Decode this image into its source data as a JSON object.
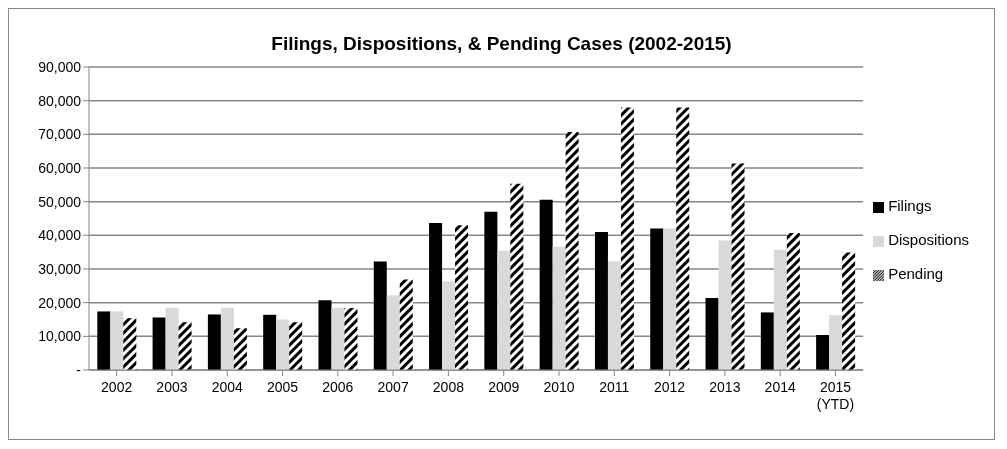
{
  "chart_data": {
    "type": "bar",
    "title": "Filings, Dispositions, & Pending Cases (2002-2015)",
    "categories": [
      "2002",
      "2003",
      "2004",
      "2005",
      "2006",
      "2007",
      "2008",
      "2009",
      "2010",
      "2011",
      "2012",
      "2013",
      "2014",
      "2015\n(YTD)"
    ],
    "series": [
      {
        "name": "Filings",
        "color": "#000000",
        "values": [
          17400,
          15600,
          16500,
          16400,
          20700,
          32200,
          43700,
          47000,
          50600,
          41000,
          42000,
          21400,
          17100,
          10400
        ]
      },
      {
        "name": "Dispositions",
        "color": "#d9d9d9",
        "values": [
          17400,
          18500,
          18500,
          15000,
          18500,
          22200,
          26300,
          35400,
          36600,
          32300,
          42000,
          38500,
          35700,
          16300
        ]
      },
      {
        "name": "Pending",
        "color": "#000000",
        "values": [
          15400,
          14200,
          12400,
          14200,
          18400,
          26900,
          43000,
          55300,
          70700,
          78000,
          78000,
          61300,
          40700,
          34900
        ]
      }
    ],
    "ylim": [
      0,
      90000
    ],
    "yticks": [
      {
        "value": 0,
        "label": "-"
      },
      {
        "value": 10000,
        "label": "10,000"
      },
      {
        "value": 20000,
        "label": "20,000"
      },
      {
        "value": 30000,
        "label": "30,000"
      },
      {
        "value": 40000,
        "label": "40,000"
      },
      {
        "value": 50000,
        "label": "50,000"
      },
      {
        "value": 60000,
        "label": "60,000"
      },
      {
        "value": 70000,
        "label": "70,000"
      },
      {
        "value": 80000,
        "label": "80,000"
      },
      {
        "value": 90000,
        "label": "90,000"
      }
    ],
    "grid": "y",
    "legend": "right"
  }
}
